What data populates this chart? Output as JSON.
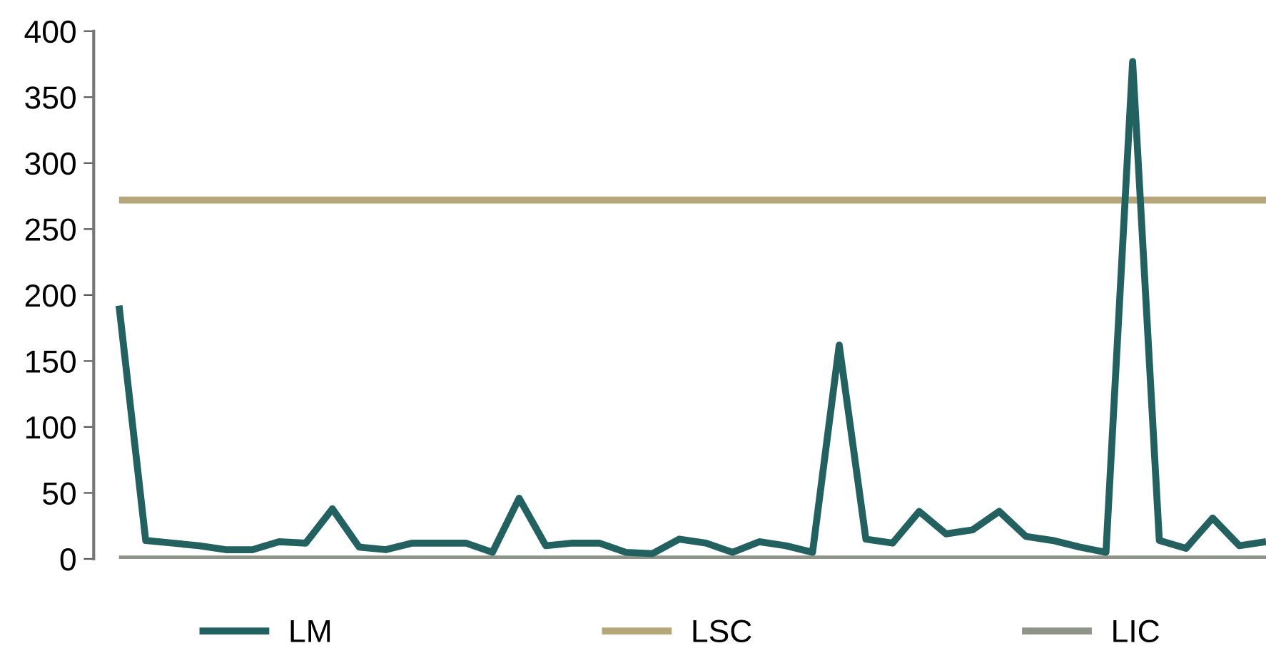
{
  "chart_data": {
    "type": "line",
    "categories": [
      null,
      null,
      null,
      null,
      null,
      null,
      null,
      null,
      null,
      null,
      null,
      null,
      null,
      null,
      null,
      null,
      null,
      null,
      null,
      null,
      null,
      null,
      null,
      null,
      null,
      null,
      null,
      null,
      null,
      null,
      null,
      null,
      null,
      null,
      null,
      null,
      null,
      null,
      null,
      null,
      null,
      null,
      null,
      null
    ],
    "series": [
      {
        "name": "LM",
        "color": "#236160",
        "values": [
          192,
          14,
          12,
          10,
          7,
          7,
          13,
          12,
          38,
          9,
          7,
          12,
          12,
          12,
          5,
          46,
          10,
          12,
          12,
          5,
          4,
          15,
          12,
          5,
          13,
          10,
          5,
          162,
          15,
          12,
          36,
          19,
          22,
          36,
          17,
          14,
          9,
          5,
          377,
          14,
          8,
          31,
          10,
          13
        ]
      },
      {
        "name": "LSC",
        "color": "#b5a67b",
        "values": [
          272,
          272,
          272,
          272,
          272,
          272,
          272,
          272,
          272,
          272,
          272,
          272,
          272,
          272,
          272,
          272,
          272,
          272,
          272,
          272,
          272,
          272,
          272,
          272,
          272,
          272,
          272,
          272,
          272,
          272,
          272,
          272,
          272,
          272,
          272,
          272,
          272,
          272,
          272,
          272,
          272,
          272,
          272,
          272
        ]
      },
      {
        "name": "LIC",
        "color": "#8e9488",
        "values": [
          0,
          0,
          0,
          0,
          0,
          0,
          0,
          0,
          0,
          0,
          0,
          0,
          0,
          0,
          0,
          0,
          0,
          0,
          0,
          0,
          0,
          0,
          0,
          0,
          0,
          0,
          0,
          0,
          0,
          0,
          0,
          0,
          0,
          0,
          0,
          0,
          0,
          0,
          0,
          0,
          0,
          0,
          0,
          0
        ]
      }
    ],
    "ylim": [
      0,
      400
    ],
    "yticks": [
      0,
      50,
      100,
      150,
      200,
      250,
      300,
      350,
      400
    ],
    "grid": false,
    "legend": "bottom",
    "marker": "none",
    "line_style": "solid"
  }
}
